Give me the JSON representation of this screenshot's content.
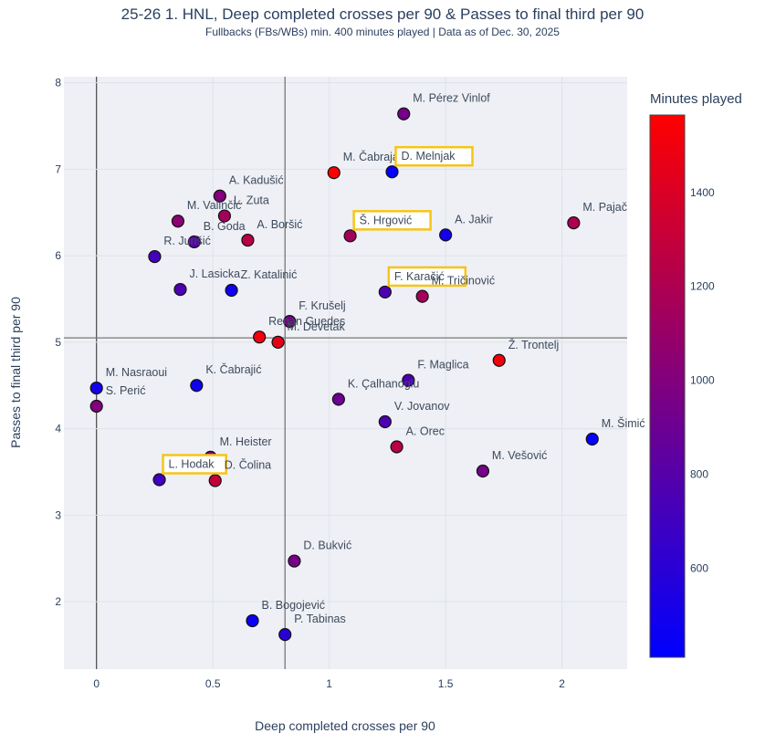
{
  "chart_data": {
    "type": "scatter",
    "title": "25-26 1. HNL, Deep completed crosses per 90 & Passes to final third per 90",
    "subtitle": "Fullbacks (FBs/WBs) min. 400 minutes played | Data as of Dec. 30, 2025",
    "xlabel": "Deep completed crosses per 90",
    "ylabel": "Passes to final third per 90",
    "xlim": [
      -0.14,
      2.28
    ],
    "ylim": [
      1.22,
      8.07
    ],
    "xticks": [
      0,
      0.5,
      1,
      1.5,
      2
    ],
    "xtick_labels": [
      "0",
      "0.5",
      "1",
      "1.5",
      "2"
    ],
    "yticks": [
      2,
      3,
      4,
      5,
      6,
      7,
      8
    ],
    "ytick_labels": [
      "2",
      "3",
      "4",
      "5",
      "6",
      "7",
      "8"
    ],
    "grid": true,
    "reference_lines": {
      "x_mean": 0.81,
      "y_mean": 5.05
    },
    "colorbar": {
      "title": "Minutes played",
      "range": [
        410,
        1565
      ],
      "ticks": [
        600,
        800,
        1000,
        1200,
        1400
      ],
      "tick_labels": [
        "600",
        "800",
        "1000",
        "1200",
        "1400"
      ],
      "color_low": "#0000ff",
      "color_high": "#ff0000"
    },
    "highlight_color": "#f5c518",
    "points": [
      {
        "name": "M. Pérez Vinlof",
        "x": 1.32,
        "y": 7.64,
        "minutes": 950,
        "highlight": false
      },
      {
        "name": "M. Čabraja",
        "x": 1.02,
        "y": 6.96,
        "minutes": 1560,
        "highlight": false
      },
      {
        "name": "D. Melnjak",
        "x": 1.27,
        "y": 6.97,
        "minutes": 430,
        "highlight": true
      },
      {
        "name": "A. Kadušić",
        "x": 0.53,
        "y": 6.69,
        "minutes": 1000,
        "highlight": false
      },
      {
        "name": "L. Zuta",
        "x": 0.55,
        "y": 6.46,
        "minutes": 1150,
        "highlight": false
      },
      {
        "name": "M. Valinčić",
        "x": 0.35,
        "y": 6.4,
        "minutes": 1050,
        "highlight": false
      },
      {
        "name": "B. Goda",
        "x": 0.42,
        "y": 6.16,
        "minutes": 800,
        "highlight": false
      },
      {
        "name": "A. Boršić",
        "x": 0.65,
        "y": 6.18,
        "minutes": 1250,
        "highlight": false
      },
      {
        "name": "Š. Hrgović",
        "x": 1.09,
        "y": 6.23,
        "minutes": 1150,
        "highlight": true
      },
      {
        "name": "A. Jakir",
        "x": 1.5,
        "y": 6.24,
        "minutes": 500,
        "highlight": false
      },
      {
        "name": "M. Pajač",
        "x": 2.05,
        "y": 6.38,
        "minutes": 1200,
        "highlight": false
      },
      {
        "name": "R. Jurišić",
        "x": 0.25,
        "y": 5.99,
        "minutes": 720,
        "highlight": false
      },
      {
        "name": "J. Lasicka",
        "x": 0.36,
        "y": 5.61,
        "minutes": 760,
        "highlight": false
      },
      {
        "name": "Z. Katalinić",
        "x": 0.58,
        "y": 5.6,
        "minutes": 480,
        "highlight": false
      },
      {
        "name": "F. Karačić",
        "x": 1.24,
        "y": 5.58,
        "minutes": 760,
        "highlight": true
      },
      {
        "name": "M. Tričinović",
        "x": 1.4,
        "y": 5.53,
        "minutes": 1150,
        "highlight": false
      },
      {
        "name": "F. Krušelj",
        "x": 0.83,
        "y": 5.24,
        "minutes": 950,
        "highlight": false
      },
      {
        "name": "Renan Guedes",
        "x": 0.7,
        "y": 5.06,
        "minutes": 1500,
        "highlight": false
      },
      {
        "name": "M. Devetak",
        "x": 0.78,
        "y": 5.0,
        "minutes": 1450,
        "highlight": false
      },
      {
        "name": "Ž. Trontelj",
        "x": 1.73,
        "y": 4.79,
        "minutes": 1520,
        "highlight": false
      },
      {
        "name": "F. Maglica",
        "x": 1.34,
        "y": 4.56,
        "minutes": 760,
        "highlight": false
      },
      {
        "name": "M.  Nasraoui",
        "x": 0.0,
        "y": 4.47,
        "minutes": 500,
        "highlight": false
      },
      {
        "name": "K. Čabrajić",
        "x": 0.43,
        "y": 4.5,
        "minutes": 480,
        "highlight": false
      },
      {
        "name": "K. Çalhanoglu",
        "x": 1.04,
        "y": 4.34,
        "minutes": 900,
        "highlight": false
      },
      {
        "name": "S. Perić",
        "x": 0.0,
        "y": 4.26,
        "minutes": 1000,
        "highlight": false
      },
      {
        "name": "V. Jovanov",
        "x": 1.24,
        "y": 4.08,
        "minutes": 760,
        "highlight": false
      },
      {
        "name": "A. Orec",
        "x": 1.29,
        "y": 3.79,
        "minutes": 1250,
        "highlight": false
      },
      {
        "name": "M. Šimić",
        "x": 2.13,
        "y": 3.88,
        "minutes": 430,
        "highlight": false
      },
      {
        "name": "M. Vešović",
        "x": 1.66,
        "y": 3.51,
        "minutes": 950,
        "highlight": false
      },
      {
        "name": "M. Heister",
        "x": 0.49,
        "y": 3.67,
        "minutes": 1000,
        "highlight": false
      },
      {
        "name": "L. Hodak",
        "x": 0.27,
        "y": 3.41,
        "minutes": 700,
        "highlight": true
      },
      {
        "name": "D. Čolina",
        "x": 0.51,
        "y": 3.4,
        "minutes": 1300,
        "highlight": false
      },
      {
        "name": "D. Bukvić",
        "x": 0.85,
        "y": 2.47,
        "minutes": 950,
        "highlight": false
      },
      {
        "name": "B. Bogojević",
        "x": 0.67,
        "y": 1.78,
        "minutes": 450,
        "highlight": false
      },
      {
        "name": "P. Tabinas",
        "x": 0.81,
        "y": 1.62,
        "minutes": 600,
        "highlight": false
      }
    ]
  }
}
